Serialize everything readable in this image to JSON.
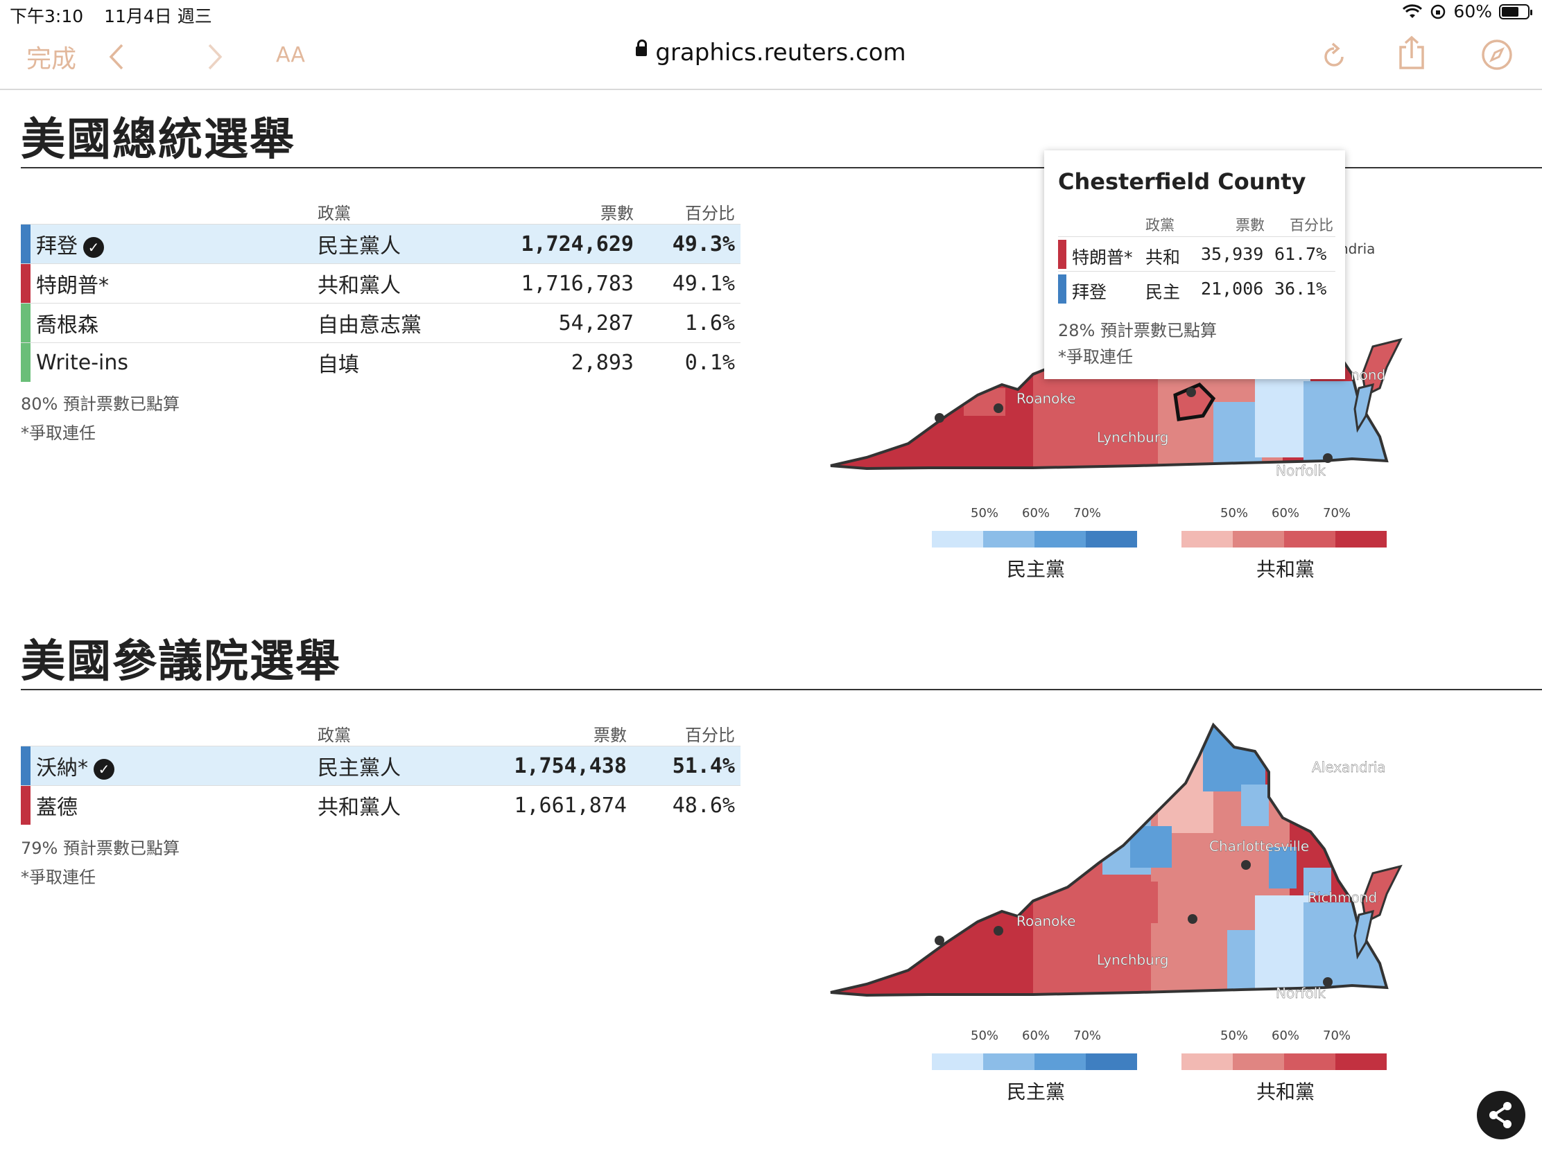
{
  "status": {
    "time": "下午3:10",
    "date": "11月4日 週三",
    "battery": "60%"
  },
  "browser": {
    "done_label": "完成",
    "text_size_label": "AA",
    "url": "graphics.reuters.com"
  },
  "colors": {
    "dem": [
      "#cfe6fb",
      "#8cbde8",
      "#5d9ed8",
      "#3f7fc1"
    ],
    "rep": [
      "#f2b9b3",
      "#e08582",
      "#d55a60",
      "#c23140"
    ],
    "win_row_bg": "#ddeefa"
  },
  "president": {
    "title": "美國總統選舉",
    "headers": {
      "party": "政黨",
      "votes": "票數",
      "pct": "百分比"
    },
    "rows": [
      {
        "name": "拜登",
        "winner": true,
        "party": "民主黨人",
        "votes": "1,724,629",
        "pct": "49.3%",
        "color": "#3f7fc1"
      },
      {
        "name": "特朗普*",
        "winner": false,
        "party": "共和黨人",
        "votes": "1,716,783",
        "pct": "49.1%",
        "color": "#c23140"
      },
      {
        "name": "喬根森",
        "winner": false,
        "party": "自由意志黨",
        "votes": "54,287",
        "pct": "1.6%",
        "color": "#6abe78"
      },
      {
        "name": "Write-ins",
        "winner": false,
        "party": "自填",
        "votes": "2,893",
        "pct": "0.1%",
        "color": "#6abe78"
      }
    ],
    "note": "80% 預計票數已點算",
    "incumbent": "*爭取連任"
  },
  "senate": {
    "title": "美國參議院選舉",
    "headers": {
      "party": "政黨",
      "votes": "票數",
      "pct": "百分比"
    },
    "rows": [
      {
        "name": "沃納*",
        "winner": true,
        "party": "民主黨人",
        "votes": "1,754,438",
        "pct": "51.4%",
        "color": "#3f7fc1"
      },
      {
        "name": "蓋德",
        "winner": false,
        "party": "共和黨人",
        "votes": "1,661,874",
        "pct": "48.6%",
        "color": "#c23140"
      }
    ],
    "note": "79% 預計票數已點算",
    "incumbent": "*爭取連任"
  },
  "map": {
    "cities": {
      "alexandria": "Alexandria",
      "alexandria_partial": "ndria",
      "charlottesville": "Charlottesville",
      "richmond": "Richmond",
      "richmond_partial": "nond",
      "roanoke": "Roanoke",
      "lynchburg": "Lynchburg",
      "norfolk": "Norfolk"
    },
    "legend": {
      "ticks": [
        "50%",
        "60%",
        "70%"
      ],
      "dem_label": "民主黨",
      "rep_label": "共和黨"
    }
  },
  "tooltip": {
    "title": "Chesterfield County",
    "headers": {
      "party": "政黨",
      "votes": "票數",
      "pct": "百分比"
    },
    "rows": [
      {
        "name": "特朗普*",
        "party": "共和",
        "votes": "35,939",
        "pct": "61.7%",
        "color": "#c23140"
      },
      {
        "name": "拜登",
        "party": "民主",
        "votes": "21,006",
        "pct": "36.1%",
        "color": "#3f7fc1"
      }
    ],
    "note": "28% 預計票數已點算",
    "incumbent": "*爭取連任"
  }
}
